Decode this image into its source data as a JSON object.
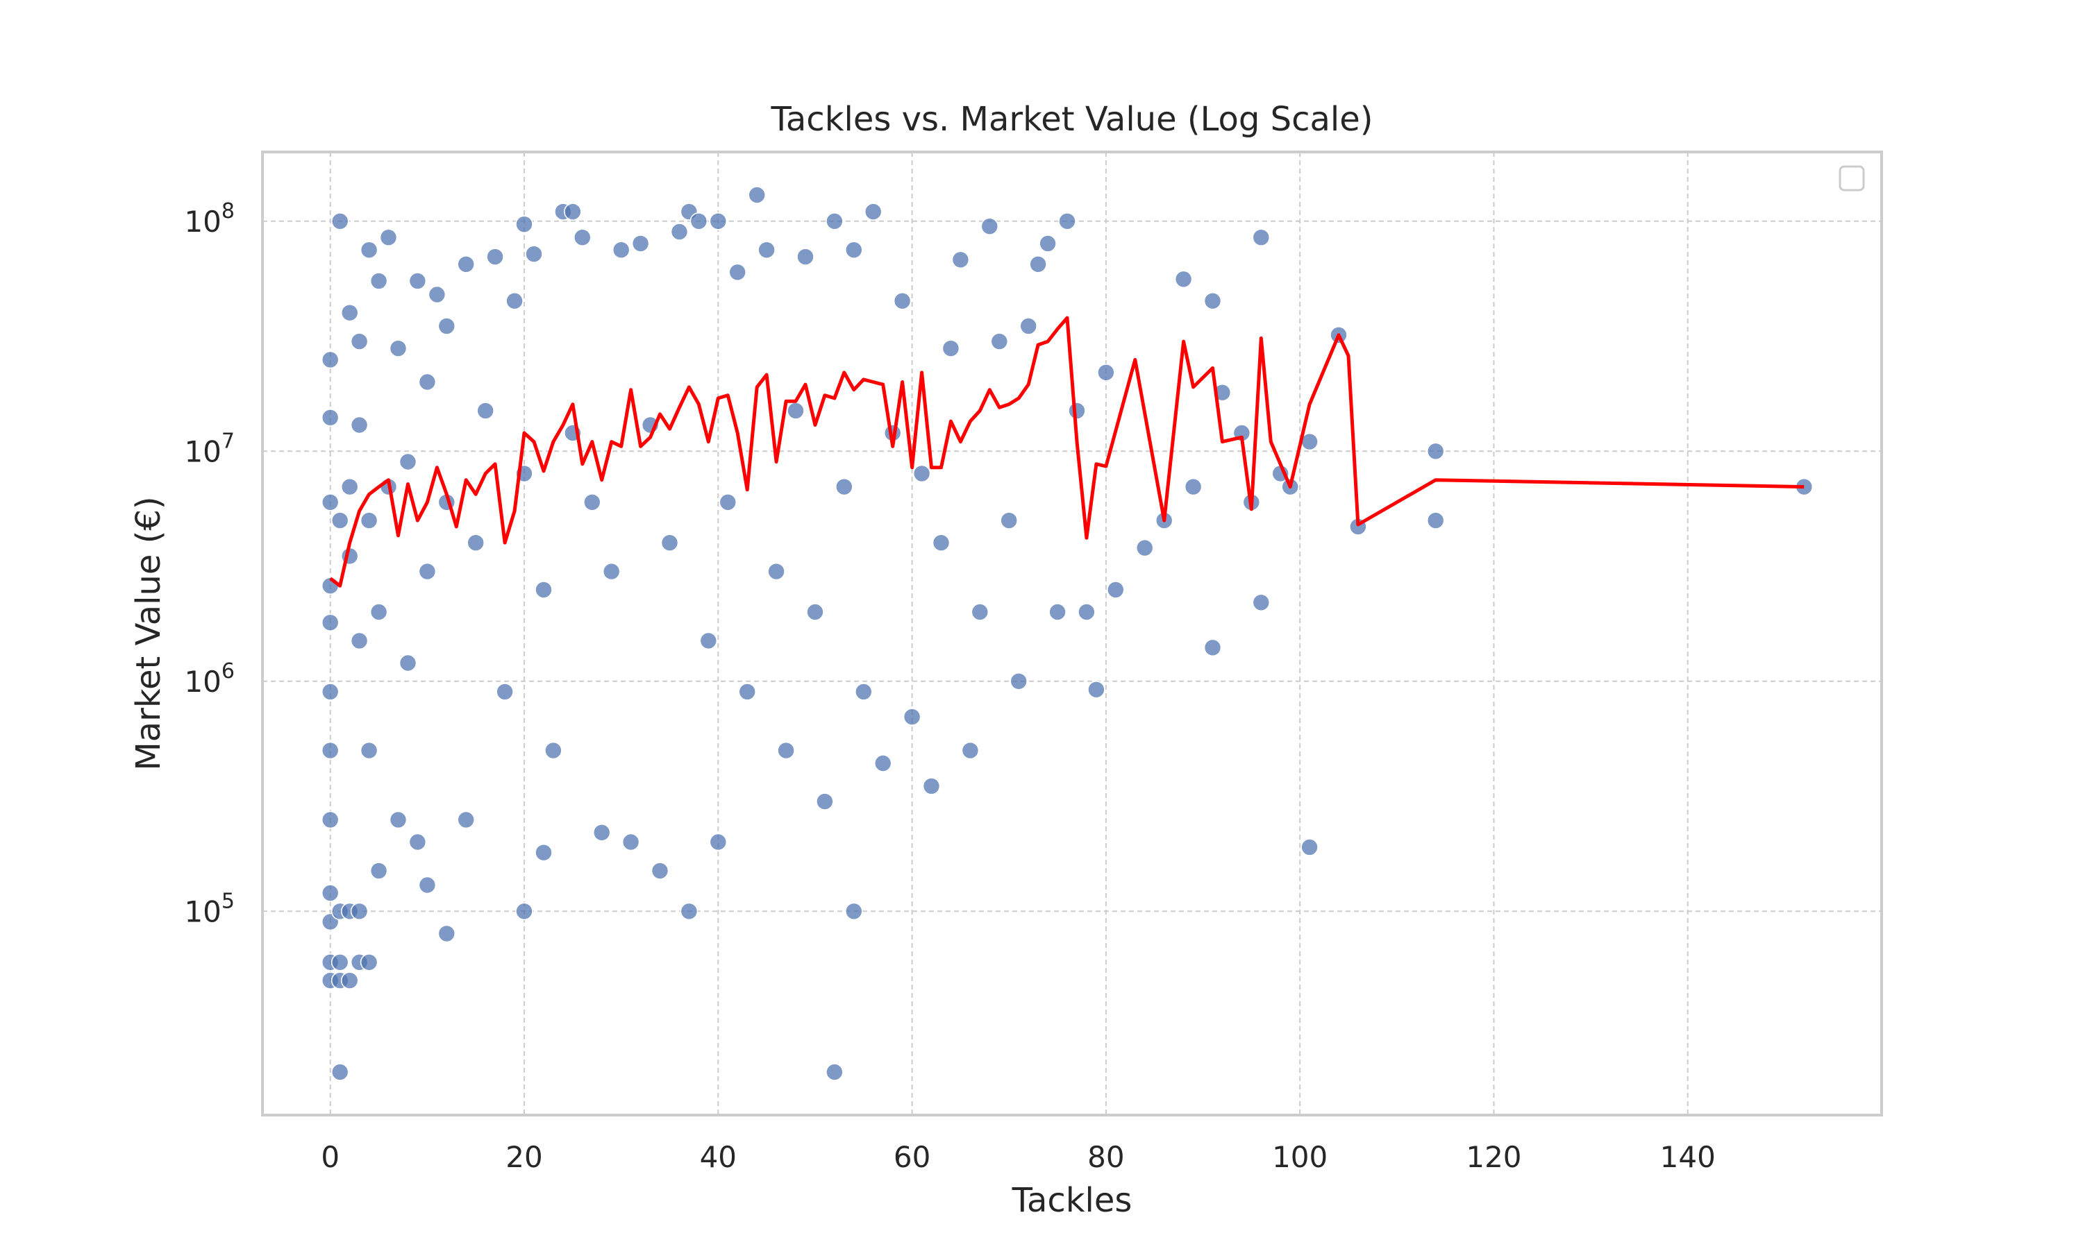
{
  "chart_data": {
    "type": "scatter",
    "title": "Tackles vs. Market Value (Log Scale)",
    "xlabel": "Tackles",
    "ylabel": "Market Value (€)",
    "xlim": [
      -7,
      160
    ],
    "ylim": [
      13000,
      200000000
    ],
    "yscale": "log",
    "grid": true,
    "legend": "top-right (empty)",
    "xticks": [
      "0",
      "20",
      "40",
      "60",
      "80",
      "100",
      "120",
      "140"
    ],
    "yticks": [
      {
        "base": "10",
        "exp": "5",
        "value": 100000
      },
      {
        "base": "10",
        "exp": "6",
        "value": 1000000
      },
      {
        "base": "10",
        "exp": "7",
        "value": 10000000
      },
      {
        "base": "10",
        "exp": "8",
        "value": 100000000
      }
    ],
    "colors": {
      "points": "#4c72b0",
      "trend_line": "#ff0000"
    },
    "series": [
      {
        "kind": "scatter",
        "points": [
          [
            0,
            2600000
          ],
          [
            0,
            14000000
          ],
          [
            0,
            900000
          ],
          [
            0,
            500000
          ],
          [
            0,
            250000
          ],
          [
            0,
            120000
          ],
          [
            0,
            60000
          ],
          [
            0,
            50000
          ],
          [
            0,
            90000
          ],
          [
            0,
            6000000
          ],
          [
            0,
            25000000
          ],
          [
            0,
            1800000
          ],
          [
            1,
            100000000
          ],
          [
            1,
            20000
          ],
          [
            1,
            50000
          ],
          [
            1,
            60000
          ],
          [
            1,
            100000
          ],
          [
            1,
            5000000
          ],
          [
            2,
            100000
          ],
          [
            2,
            50000
          ],
          [
            2,
            40000000
          ],
          [
            2,
            3500000
          ],
          [
            2,
            7000000
          ],
          [
            3,
            100000
          ],
          [
            3,
            60000
          ],
          [
            3,
            30000000
          ],
          [
            3,
            13000000
          ],
          [
            3,
            1500000
          ],
          [
            4,
            75000000
          ],
          [
            4,
            60000
          ],
          [
            4,
            500000
          ],
          [
            4,
            5000000
          ],
          [
            5,
            55000000
          ],
          [
            5,
            150000
          ],
          [
            5,
            2000000
          ],
          [
            6,
            85000000
          ],
          [
            6,
            7000000
          ],
          [
            7,
            250000
          ],
          [
            7,
            28000000
          ],
          [
            8,
            1200000
          ],
          [
            8,
            9000000
          ],
          [
            9,
            200000
          ],
          [
            9,
            55000000
          ],
          [
            10,
            130000
          ],
          [
            10,
            3000000
          ],
          [
            10,
            20000000
          ],
          [
            11,
            48000000
          ],
          [
            12,
            80000
          ],
          [
            12,
            6000000
          ],
          [
            12,
            35000000
          ],
          [
            14,
            250000
          ],
          [
            14,
            65000000
          ],
          [
            15,
            4000000
          ],
          [
            16,
            15000000
          ],
          [
            17,
            70000000
          ],
          [
            18,
            900000
          ],
          [
            19,
            45000000
          ],
          [
            20,
            100000
          ],
          [
            20,
            97000000
          ],
          [
            20,
            8000000
          ],
          [
            21,
            72000000
          ],
          [
            22,
            180000
          ],
          [
            22,
            2500000
          ],
          [
            23,
            500000
          ],
          [
            24,
            110000000
          ],
          [
            25,
            110000000
          ],
          [
            25,
            12000000
          ],
          [
            26,
            85000000
          ],
          [
            27,
            6000000
          ],
          [
            28,
            220000
          ],
          [
            29,
            3000000
          ],
          [
            30,
            75000000
          ],
          [
            31,
            200000
          ],
          [
            32,
            80000000
          ],
          [
            33,
            13000000
          ],
          [
            34,
            150000
          ],
          [
            35,
            4000000
          ],
          [
            36,
            90000000
          ],
          [
            37,
            100000
          ],
          [
            37,
            110000000
          ],
          [
            38,
            100000000
          ],
          [
            39,
            1500000
          ],
          [
            40,
            200000
          ],
          [
            40,
            100000000
          ],
          [
            41,
            6000000
          ],
          [
            42,
            60000000
          ],
          [
            43,
            900000
          ],
          [
            44,
            130000000
          ],
          [
            45,
            75000000
          ],
          [
            46,
            3000000
          ],
          [
            47,
            500000
          ],
          [
            48,
            15000000
          ],
          [
            49,
            70000000
          ],
          [
            50,
            2000000
          ],
          [
            51,
            300000
          ],
          [
            52,
            20000
          ],
          [
            52,
            100000000
          ],
          [
            53,
            7000000
          ],
          [
            54,
            100000
          ],
          [
            54,
            75000000
          ],
          [
            55,
            900000
          ],
          [
            56,
            110000000
          ],
          [
            57,
            440000
          ],
          [
            58,
            12000000
          ],
          [
            59,
            45000000
          ],
          [
            60,
            700000
          ],
          [
            61,
            8000000
          ],
          [
            62,
            350000
          ],
          [
            63,
            4000000
          ],
          [
            64,
            28000000
          ],
          [
            65,
            68000000
          ],
          [
            66,
            500000
          ],
          [
            67,
            2000000
          ],
          [
            68,
            95000000
          ],
          [
            69,
            30000000
          ],
          [
            70,
            5000000
          ],
          [
            71,
            1000000
          ],
          [
            72,
            35000000
          ],
          [
            73,
            65000000
          ],
          [
            74,
            80000000
          ],
          [
            75,
            2000000
          ],
          [
            76,
            100000000
          ],
          [
            77,
            15000000
          ],
          [
            78,
            2000000
          ],
          [
            79,
            920000
          ],
          [
            80,
            22000000
          ],
          [
            81,
            2500000
          ],
          [
            84,
            3800000
          ],
          [
            86,
            5000000
          ],
          [
            88,
            56000000
          ],
          [
            89,
            7000000
          ],
          [
            91,
            1400000
          ],
          [
            91,
            45000000
          ],
          [
            92,
            18000000
          ],
          [
            94,
            12000000
          ],
          [
            95,
            6000000
          ],
          [
            96,
            85000000
          ],
          [
            96,
            2200000
          ],
          [
            98,
            8000000
          ],
          [
            99,
            7000000
          ],
          [
            101,
            190000
          ],
          [
            101,
            11000000
          ],
          [
            104,
            32000000
          ],
          [
            106,
            4700000
          ],
          [
            114,
            5000000
          ],
          [
            114,
            10000000
          ],
          [
            152,
            7000000
          ]
        ]
      },
      {
        "kind": "line",
        "points": [
          [
            0,
            2800000
          ],
          [
            1,
            2600000
          ],
          [
            2,
            4000000
          ],
          [
            3,
            5500000
          ],
          [
            4,
            6500000
          ],
          [
            5,
            7000000
          ],
          [
            6,
            7500000
          ],
          [
            7,
            4300000
          ],
          [
            8,
            7200000
          ],
          [
            9,
            5000000
          ],
          [
            10,
            6000000
          ],
          [
            11,
            8500000
          ],
          [
            12,
            6500000
          ],
          [
            13,
            4700000
          ],
          [
            14,
            7500000
          ],
          [
            15,
            6500000
          ],
          [
            16,
            8000000
          ],
          [
            17,
            8800000
          ],
          [
            18,
            4000000
          ],
          [
            19,
            5500000
          ],
          [
            20,
            12000000
          ],
          [
            21,
            11000000
          ],
          [
            22,
            8200000
          ],
          [
            23,
            11000000
          ],
          [
            24,
            13000000
          ],
          [
            25,
            16000000
          ],
          [
            26,
            8800000
          ],
          [
            27,
            11000000
          ],
          [
            28,
            7500000
          ],
          [
            29,
            11000000
          ],
          [
            30,
            10500000
          ],
          [
            31,
            18500000
          ],
          [
            32,
            10500000
          ],
          [
            33,
            11500000
          ],
          [
            34,
            14500000
          ],
          [
            35,
            12500000
          ],
          [
            36,
            15500000
          ],
          [
            37,
            19000000
          ],
          [
            38,
            16000000
          ],
          [
            39,
            11000000
          ],
          [
            40,
            17000000
          ],
          [
            41,
            17500000
          ],
          [
            42,
            12000000
          ],
          [
            43,
            6800000
          ],
          [
            44,
            19000000
          ],
          [
            45,
            21500000
          ],
          [
            46,
            9000000
          ],
          [
            47,
            16500000
          ],
          [
            48,
            16500000
          ],
          [
            49,
            19500000
          ],
          [
            50,
            13000000
          ],
          [
            51,
            17500000
          ],
          [
            52,
            17000000
          ],
          [
            53,
            22000000
          ],
          [
            54,
            18500000
          ],
          [
            55,
            20500000
          ],
          [
            56,
            20000000
          ],
          [
            57,
            19500000
          ],
          [
            58,
            10500000
          ],
          [
            59,
            20000000
          ],
          [
            60,
            8500000
          ],
          [
            61,
            22000000
          ],
          [
            62,
            8500000
          ],
          [
            63,
            8500000
          ],
          [
            64,
            13500000
          ],
          [
            65,
            11000000
          ],
          [
            66,
            13500000
          ],
          [
            67,
            15000000
          ],
          [
            68,
            18500000
          ],
          [
            69,
            15500000
          ],
          [
            70,
            16000000
          ],
          [
            71,
            17000000
          ],
          [
            72,
            19500000
          ],
          [
            73,
            29000000
          ],
          [
            74,
            30000000
          ],
          [
            75,
            34000000
          ],
          [
            76,
            38000000
          ],
          [
            77,
            11000000
          ],
          [
            78,
            4200000
          ],
          [
            79,
            8800000
          ],
          [
            80,
            8600000
          ],
          [
            83,
            25000000
          ],
          [
            86,
            5000000
          ],
          [
            88,
            30000000
          ],
          [
            89,
            19000000
          ],
          [
            91,
            23000000
          ],
          [
            92,
            11000000
          ],
          [
            94,
            11500000
          ],
          [
            95,
            5600000
          ],
          [
            96,
            31000000
          ],
          [
            97,
            11000000
          ],
          [
            99,
            7000000
          ],
          [
            101,
            16000000
          ],
          [
            104,
            32000000
          ],
          [
            105,
            26000000
          ],
          [
            106,
            4800000
          ],
          [
            114,
            7500000
          ],
          [
            152,
            7000000
          ]
        ]
      }
    ]
  }
}
